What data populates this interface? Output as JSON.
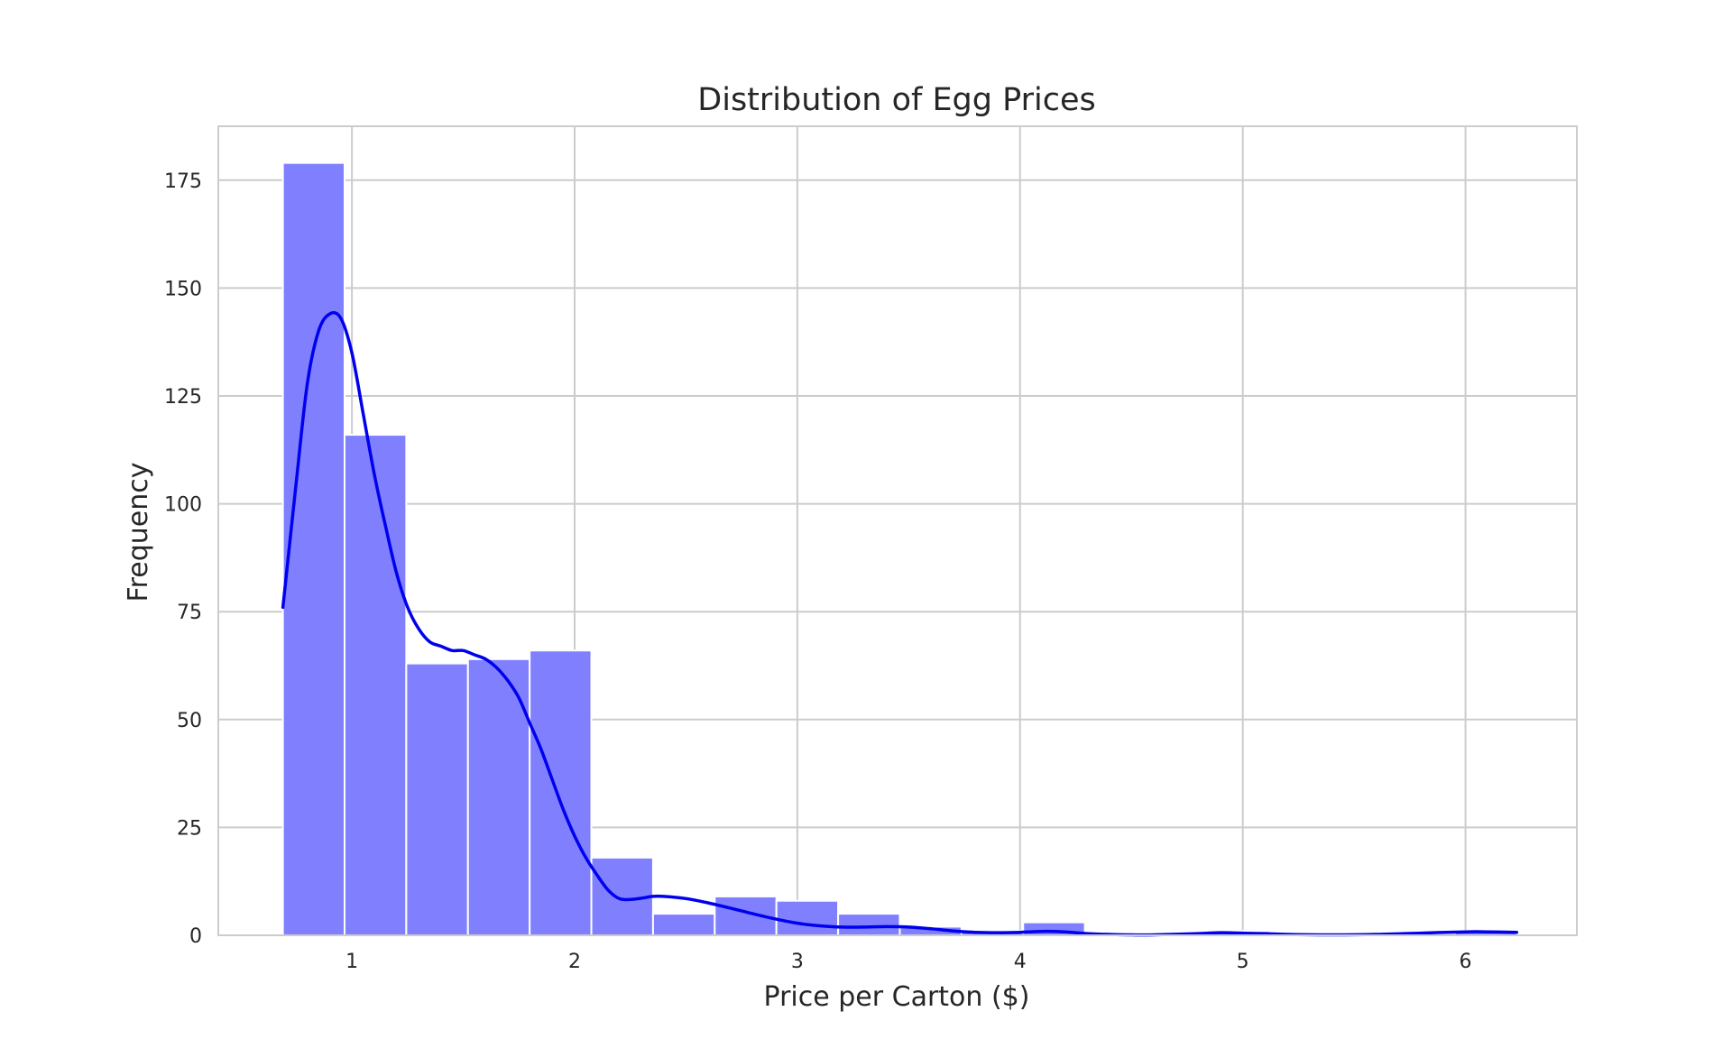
{
  "chart_data": {
    "type": "bar",
    "title": "Distribution of Egg Prices",
    "xlabel": "Price per Carton ($)",
    "ylabel": "Frequency",
    "bins": [
      {
        "x0": 0.69,
        "x1": 0.967,
        "count": 179
      },
      {
        "x0": 0.967,
        "x1": 1.244,
        "count": 116
      },
      {
        "x0": 1.244,
        "x1": 1.521,
        "count": 63
      },
      {
        "x0": 1.521,
        "x1": 1.798,
        "count": 64
      },
      {
        "x0": 1.798,
        "x1": 2.075,
        "count": 66
      },
      {
        "x0": 2.075,
        "x1": 2.352,
        "count": 18
      },
      {
        "x0": 2.352,
        "x1": 2.629,
        "count": 5
      },
      {
        "x0": 2.629,
        "x1": 2.906,
        "count": 9
      },
      {
        "x0": 2.906,
        "x1": 3.183,
        "count": 8
      },
      {
        "x0": 3.183,
        "x1": 3.46,
        "count": 5
      },
      {
        "x0": 3.46,
        "x1": 3.737,
        "count": 2
      },
      {
        "x0": 3.737,
        "x1": 4.014,
        "count": 1
      },
      {
        "x0": 4.014,
        "x1": 4.291,
        "count": 3
      },
      {
        "x0": 4.291,
        "x1": 4.568,
        "count": 0
      },
      {
        "x0": 4.568,
        "x1": 4.845,
        "count": 0
      },
      {
        "x0": 4.845,
        "x1": 5.122,
        "count": 1
      },
      {
        "x0": 5.122,
        "x1": 5.399,
        "count": 0
      },
      {
        "x0": 5.399,
        "x1": 5.676,
        "count": 0
      },
      {
        "x0": 5.676,
        "x1": 5.953,
        "count": 0
      },
      {
        "x0": 5.953,
        "x1": 6.23,
        "count": 1
      }
    ],
    "kde": {
      "x": [
        0.69,
        0.75,
        0.8,
        0.85,
        0.9,
        0.95,
        1.0,
        1.05,
        1.1,
        1.15,
        1.2,
        1.25,
        1.3,
        1.35,
        1.4,
        1.45,
        1.5,
        1.55,
        1.6,
        1.65,
        1.7,
        1.75,
        1.8,
        1.85,
        1.9,
        1.95,
        2.0,
        2.05,
        2.1,
        2.15,
        2.2,
        2.25,
        2.3,
        2.35,
        2.4,
        2.5,
        2.6,
        2.7,
        2.8,
        2.9,
        3.0,
        3.1,
        3.2,
        3.3,
        3.4,
        3.5,
        3.6,
        3.7,
        3.8,
        3.9,
        4.0,
        4.1,
        4.2,
        4.3,
        4.4,
        4.5,
        4.6,
        4.8,
        4.9,
        5.0,
        5.2,
        5.4,
        5.6,
        5.8,
        6.0,
        6.1,
        6.23
      ],
      "y": [
        76,
        105,
        128,
        140,
        144,
        143,
        135,
        121,
        107,
        95,
        84,
        76,
        71,
        68,
        67,
        66,
        66,
        65,
        64,
        62,
        59,
        55,
        49,
        43,
        36,
        29,
        23,
        18,
        14,
        10.5,
        8.5,
        8.3,
        8.6,
        9,
        9,
        8.5,
        7.5,
        6.3,
        5,
        3.8,
        2.8,
        2.2,
        1.9,
        1.9,
        2,
        1.9,
        1.5,
        1.0,
        0.7,
        0.6,
        0.7,
        0.9,
        0.8,
        0.4,
        0.2,
        0.1,
        0.1,
        0.4,
        0.6,
        0.5,
        0.2,
        0.1,
        0.2,
        0.5,
        0.8,
        0.8,
        0.7
      ]
    },
    "x_ticks": [
      1,
      2,
      3,
      4,
      5,
      6
    ],
    "y_ticks": [
      0,
      25,
      50,
      75,
      100,
      125,
      150,
      175
    ],
    "xlim": [
      0.4,
      6.5
    ],
    "ylim": [
      0,
      187.5
    ],
    "grid": true,
    "bar_color": "#8080ff",
    "line_color": "#0000ee"
  }
}
